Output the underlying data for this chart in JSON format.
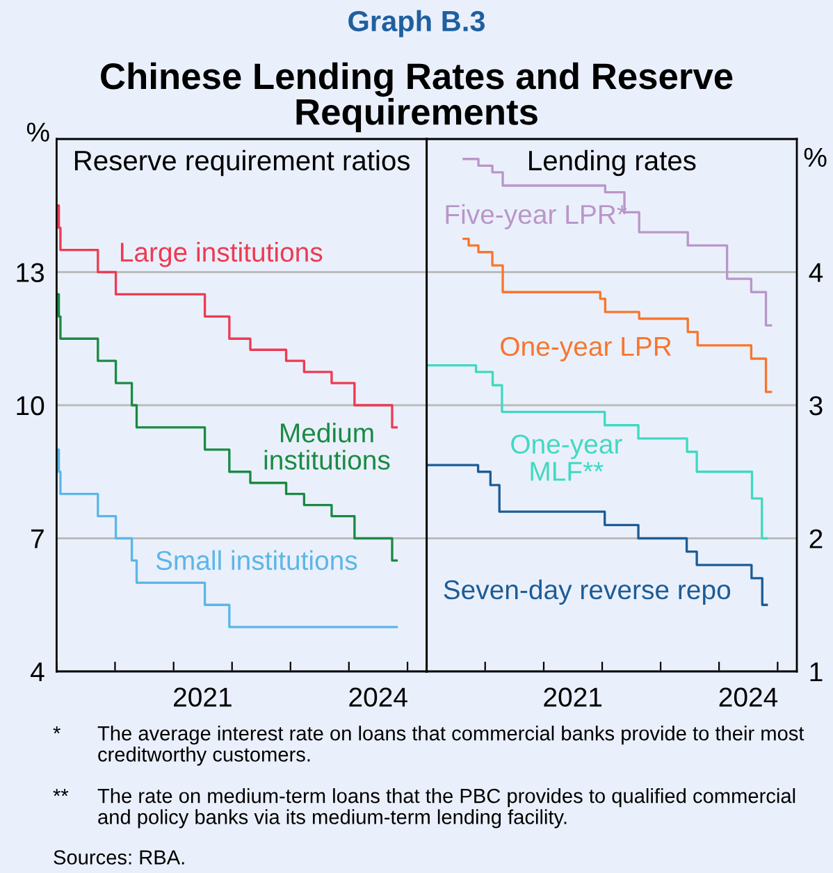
{
  "chart_data": [
    {
      "type": "step",
      "title": "Reserve requirement ratios",
      "ylabel": "%",
      "annotations": [
        "Graph B.3",
        "Chinese Lending Rates and Reserve Requirements"
      ],
      "xlim": [
        "2019-01-01",
        "2025-05-01"
      ],
      "ylim": [
        4,
        16
      ],
      "yticks": [
        4,
        7,
        10,
        13
      ],
      "xticks": [
        {
          "value": "2019-01-01",
          "label": null
        },
        {
          "value": "2020-01-01",
          "label": null
        },
        {
          "value": "2021-01-01",
          "label": null
        },
        {
          "value": "2022-01-01",
          "label": null
        },
        {
          "value": "2023-01-01",
          "label": null
        },
        {
          "value": "2024-01-01",
          "label": null
        },
        {
          "value": "2025-01-01",
          "label": null
        },
        {
          "value": "2021-07-01",
          "label": "2021"
        },
        {
          "value": "2024-07-01",
          "label": "2024"
        }
      ],
      "grid": "y",
      "legend": false,
      "series": [
        {
          "name": "Large institutions",
          "color": "#ec3b53",
          "x": [
            "2019-01-01",
            "2019-01-15",
            "2019-01-25",
            "2019-09-16",
            "2020-01-06",
            "2021-07-15",
            "2021-12-15",
            "2022-04-25",
            "2022-12-05",
            "2023-03-27",
            "2023-09-15",
            "2024-02-05",
            "2024-09-27",
            "2024-10-25"
          ],
          "values": [
            14.5,
            14.0,
            13.5,
            13.0,
            12.5,
            12.0,
            11.5,
            11.25,
            11.0,
            10.75,
            10.5,
            10.0,
            9.5,
            9.5
          ]
        },
        {
          "name": "Medium institutions",
          "color": "#1a8a44",
          "x": [
            "2019-01-01",
            "2019-01-15",
            "2019-01-25",
            "2019-09-16",
            "2020-01-06",
            "2020-04-15",
            "2020-05-15",
            "2021-07-15",
            "2021-12-15",
            "2022-04-25",
            "2022-12-05",
            "2023-03-27",
            "2023-09-15",
            "2024-02-05",
            "2024-09-27",
            "2024-10-25"
          ],
          "values": [
            12.5,
            12.0,
            11.5,
            11.0,
            10.5,
            10.0,
            9.5,
            9.0,
            8.5,
            8.25,
            8.0,
            7.75,
            7.5,
            7.0,
            6.5,
            6.5
          ]
        },
        {
          "name": "Small institutions",
          "color": "#5bb6e8",
          "x": [
            "2019-01-01",
            "2019-01-15",
            "2019-01-25",
            "2019-09-16",
            "2020-01-06",
            "2020-04-15",
            "2020-05-15",
            "2021-07-15",
            "2021-12-15",
            "2024-10-25"
          ],
          "values": [
            9.0,
            8.5,
            8.0,
            7.5,
            7.0,
            6.5,
            6.0,
            5.5,
            5.0,
            5.0
          ]
        }
      ]
    },
    {
      "type": "step",
      "title": "Lending rates",
      "ylabel": "%",
      "annotations": [
        "*  The average interest rate on loans that commercial banks provide to their most creditworthy customers.",
        "**  The rate on medium-term loans that the PBC provides to qualified commercial and policy banks via its medium-term lending facility.",
        "Sources: RBA."
      ],
      "xlim": [
        "2019-01-01",
        "2025-05-01"
      ],
      "ylim": [
        1,
        5
      ],
      "yticks": [
        1,
        2,
        3,
        4
      ],
      "xticks": [
        {
          "value": "2019-01-01",
          "label": null
        },
        {
          "value": "2020-01-01",
          "label": null
        },
        {
          "value": "2021-01-01",
          "label": null
        },
        {
          "value": "2022-01-01",
          "label": null
        },
        {
          "value": "2023-01-01",
          "label": null
        },
        {
          "value": "2024-01-01",
          "label": null
        },
        {
          "value": "2025-01-01",
          "label": null
        },
        {
          "value": "2021-07-01",
          "label": "2021"
        },
        {
          "value": "2024-07-01",
          "label": "2024"
        }
      ],
      "grid": "y",
      "legend": false,
      "series": [
        {
          "name": "Five-year LPR*",
          "color": "#b996c9",
          "x": [
            "2019-08-20",
            "2019-11-20",
            "2020-02-15",
            "2020-04-20",
            "2022-01-20",
            "2022-05-20",
            "2022-08-20",
            "2023-06-20",
            "2024-02-20",
            "2024-07-20",
            "2024-10-20",
            "2024-11-20"
          ],
          "values": [
            4.85,
            4.8,
            4.75,
            4.65,
            4.6,
            4.45,
            4.3,
            4.2,
            3.95,
            3.85,
            3.6,
            3.6
          ]
        },
        {
          "name": "One-year LPR",
          "color": "#f7762d",
          "x": [
            "2019-08-20",
            "2019-09-20",
            "2019-11-20",
            "2020-02-15",
            "2020-04-20",
            "2021-12-20",
            "2022-01-20",
            "2022-08-20",
            "2023-06-20",
            "2023-08-20",
            "2024-07-20",
            "2024-10-20",
            "2024-11-20"
          ],
          "values": [
            4.25,
            4.2,
            4.15,
            4.05,
            3.85,
            3.8,
            3.7,
            3.65,
            3.55,
            3.45,
            3.35,
            3.1,
            3.1
          ]
        },
        {
          "name": "One-year MLF**",
          "color": "#40d9c2",
          "x": [
            "2019-01-01",
            "2019-11-05",
            "2020-02-17",
            "2020-04-15",
            "2022-01-17",
            "2022-08-15",
            "2023-06-15",
            "2023-08-15",
            "2024-07-25",
            "2024-09-25",
            "2024-10-25"
          ],
          "values": [
            3.3,
            3.25,
            3.15,
            2.95,
            2.85,
            2.75,
            2.65,
            2.5,
            2.3,
            2.0,
            2.0
          ]
        },
        {
          "name": "Seven-day reverse repo",
          "color": "#1d5c97",
          "x": [
            "2019-01-01",
            "2019-11-18",
            "2020-02-03",
            "2020-03-30",
            "2022-01-17",
            "2022-08-15",
            "2023-06-13",
            "2023-08-15",
            "2024-07-22",
            "2024-09-27",
            "2024-10-25"
          ],
          "values": [
            2.55,
            2.5,
            2.4,
            2.2,
            2.1,
            2.0,
            1.9,
            1.8,
            1.7,
            1.5,
            1.5
          ]
        }
      ]
    }
  ]
}
